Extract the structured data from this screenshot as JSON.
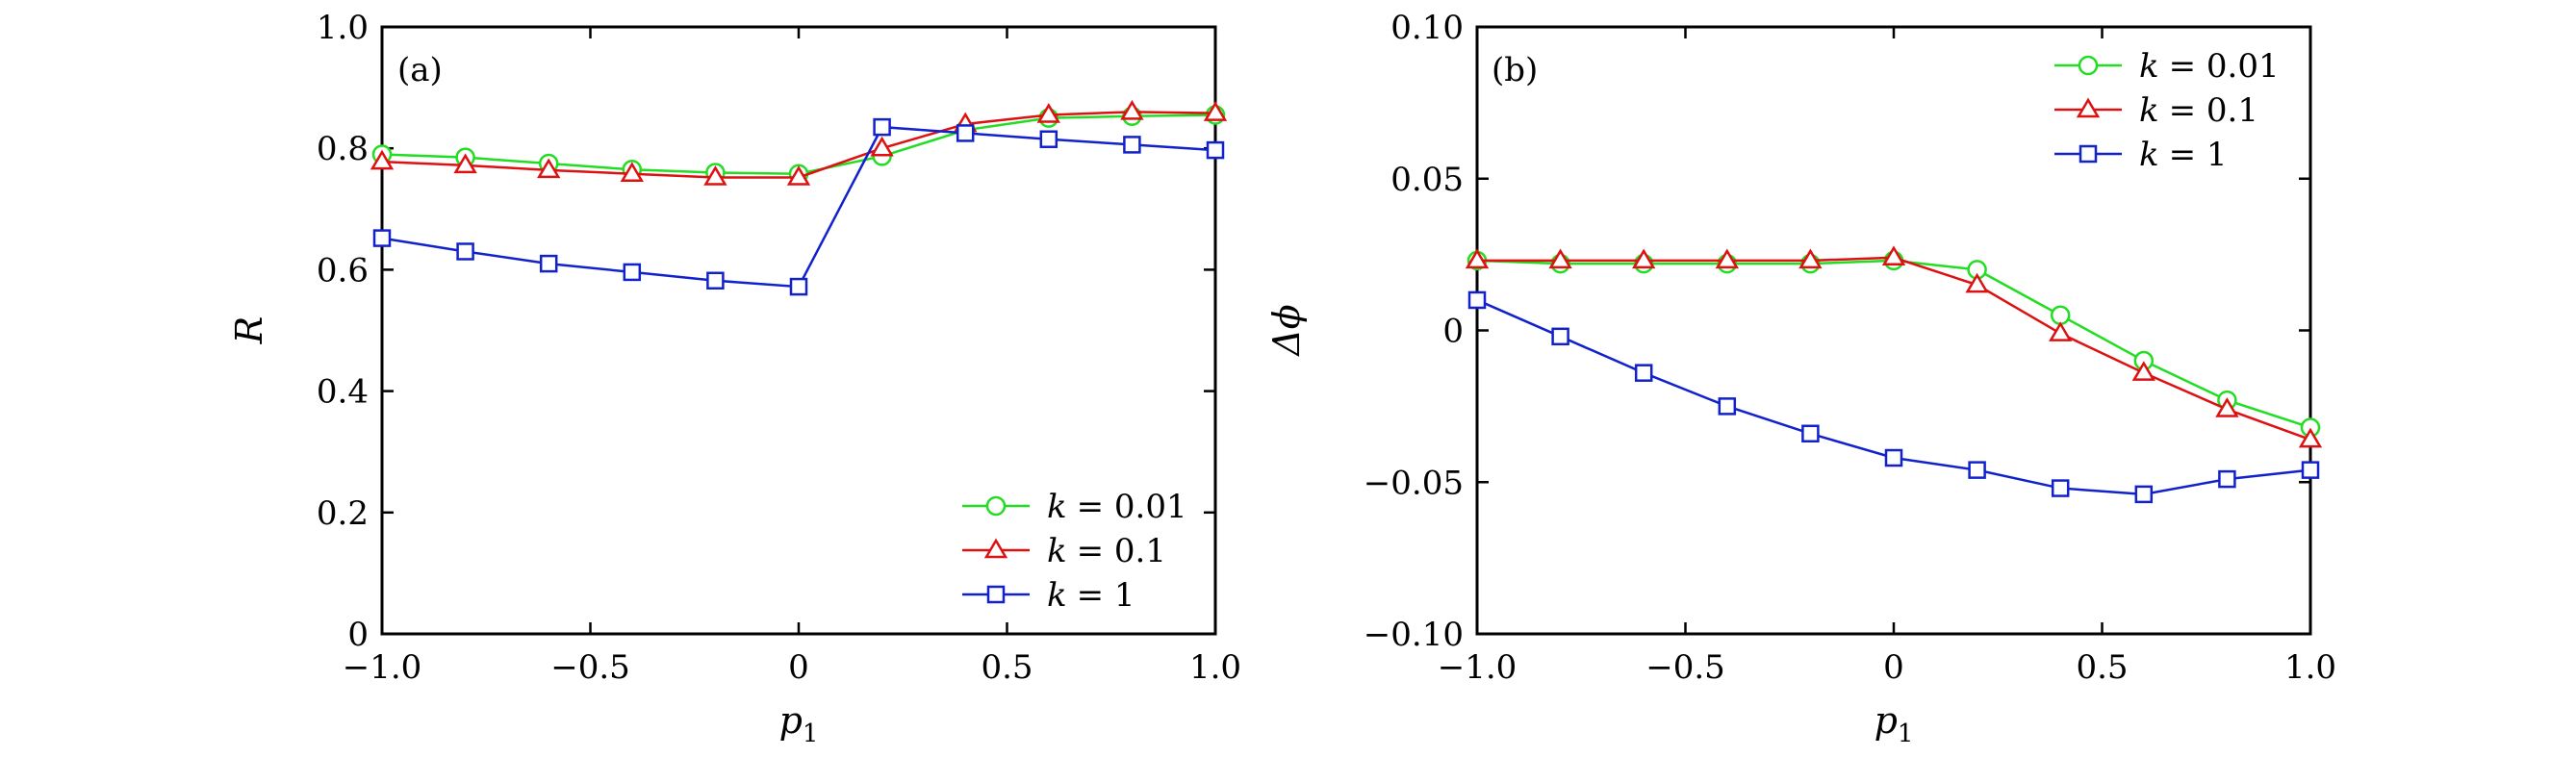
{
  "chart_data": [
    {
      "type": "line",
      "panel_label": "(a)",
      "xlabel": "p",
      "xlabel_sub": "1",
      "ylabel": "R",
      "xlim": [
        -1.0,
        1.0
      ],
      "ylim": [
        0,
        1.0
      ],
      "xticks": [
        -1.0,
        -0.5,
        0,
        0.5,
        1.0
      ],
      "xtick_labels": [
        "−1.0",
        "−0.5",
        "0",
        "0.5",
        "1.0"
      ],
      "yticks": [
        0,
        0.2,
        0.4,
        0.6,
        0.8,
        1.0
      ],
      "ytick_labels": [
        "0",
        "0.2",
        "0.4",
        "0.6",
        "0.8",
        "1.0"
      ],
      "legend_position": "bottom-right",
      "x": [
        -1.0,
        -0.8,
        -0.6,
        -0.4,
        -0.2,
        0,
        0.2,
        0.4,
        0.6,
        0.8,
        1.0
      ],
      "series": [
        {
          "name": "k = 0.01",
          "legend_var": "k",
          "legend_value": "= 0.01",
          "color": "#22dd22",
          "marker": "circle",
          "values": [
            0.79,
            0.785,
            0.775,
            0.765,
            0.76,
            0.758,
            0.787,
            0.83,
            0.85,
            0.853,
            0.855
          ]
        },
        {
          "name": "k = 0.1",
          "legend_var": "k",
          "legend_value": "= 0.1",
          "color": "#dd1111",
          "marker": "triangle",
          "values": [
            0.778,
            0.772,
            0.764,
            0.758,
            0.752,
            0.752,
            0.8,
            0.84,
            0.855,
            0.86,
            0.858
          ]
        },
        {
          "name": "k = 1",
          "legend_var": "k",
          "legend_value": "= 1",
          "color": "#1122cc",
          "marker": "square",
          "values": [
            0.652,
            0.63,
            0.61,
            0.596,
            0.582,
            0.572,
            0.835,
            0.825,
            0.815,
            0.806,
            0.797
          ]
        }
      ]
    },
    {
      "type": "line",
      "panel_label": "(b)",
      "xlabel": "p",
      "xlabel_sub": "1",
      "ylabel": "Δϕ",
      "xlim": [
        -1.0,
        1.0
      ],
      "ylim": [
        -0.1,
        0.1
      ],
      "xticks": [
        -1.0,
        -0.5,
        0,
        0.5,
        1.0
      ],
      "xtick_labels": [
        "−1.0",
        "−0.5",
        "0",
        "0.5",
        "1.0"
      ],
      "yticks": [
        -0.1,
        -0.05,
        0,
        0.05,
        0.1
      ],
      "ytick_labels": [
        "−0.10",
        "−0.05",
        "0",
        "0.05",
        "0.10"
      ],
      "legend_position": "top-right",
      "x": [
        -1.0,
        -0.8,
        -0.6,
        -0.4,
        -0.2,
        0,
        0.2,
        0.4,
        0.6,
        0.8,
        1.0
      ],
      "series": [
        {
          "name": "k = 0.01",
          "legend_var": "k",
          "legend_value": "= 0.01",
          "color": "#22dd22",
          "marker": "circle",
          "values": [
            0.023,
            0.022,
            0.022,
            0.022,
            0.022,
            0.023,
            0.02,
            0.005,
            -0.01,
            -0.023,
            -0.032
          ]
        },
        {
          "name": "k = 0.1",
          "legend_var": "k",
          "legend_value": "= 0.1",
          "color": "#dd1111",
          "marker": "triangle",
          "values": [
            0.023,
            0.023,
            0.023,
            0.023,
            0.023,
            0.024,
            0.015,
            -0.001,
            -0.014,
            -0.026,
            -0.036
          ]
        },
        {
          "name": "k = 1",
          "legend_var": "k",
          "legend_value": "= 1",
          "color": "#1122cc",
          "marker": "square",
          "values": [
            0.01,
            -0.002,
            -0.014,
            -0.025,
            -0.034,
            -0.042,
            -0.046,
            -0.052,
            -0.054,
            -0.049,
            -0.046
          ]
        }
      ]
    }
  ]
}
